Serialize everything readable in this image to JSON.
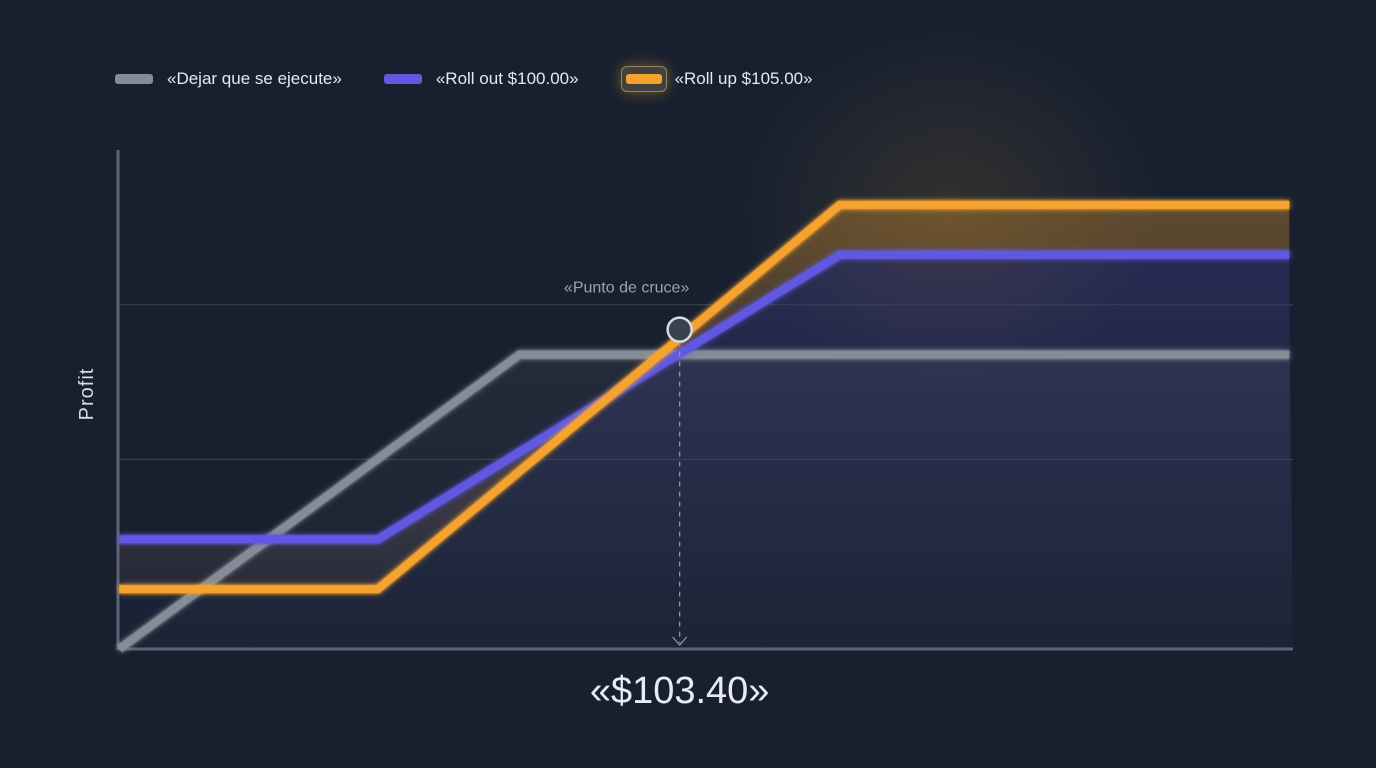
{
  "legend": [
    {
      "label": "«Dejar que se ejecute»",
      "color": "#858b97",
      "active": false
    },
    {
      "label": "«Roll out $100.00»",
      "color": "#6159e0",
      "active": false
    },
    {
      "label": "«Roll up $105.00»",
      "color": "#f5a32e",
      "active": true
    }
  ],
  "chart_data": {
    "type": "line",
    "ylabel": "Profit",
    "xlabel": "",
    "xlim": [
      94.28,
      113.36
    ],
    "ylim": [
      0,
      10
    ],
    "grid": "horizontal",
    "series": [
      {
        "name": "«Dejar que se ejecute»",
        "color": "#858b97",
        "x": [
          94.3,
          100.8,
          113.3
        ],
        "y": [
          0,
          5.9,
          5.9
        ]
      },
      {
        "name": "«Roll out $100.00»",
        "color": "#6159e0",
        "x": [
          94.3,
          98.5,
          106.0,
          113.3
        ],
        "y": [
          2.2,
          2.2,
          7.9,
          7.9
        ]
      },
      {
        "name": "«Roll up $105.00»",
        "color": "#f5a32e",
        "x": [
          94.3,
          98.5,
          106.0,
          113.3
        ],
        "y": [
          1.2,
          1.2,
          8.9,
          8.9
        ]
      }
    ],
    "annotations": {
      "crossover_label": "«Punto de cruce»",
      "crossover_x": 103.4,
      "crossover_y": 6.4,
      "crossover_value_label": "«$103.40»"
    }
  }
}
